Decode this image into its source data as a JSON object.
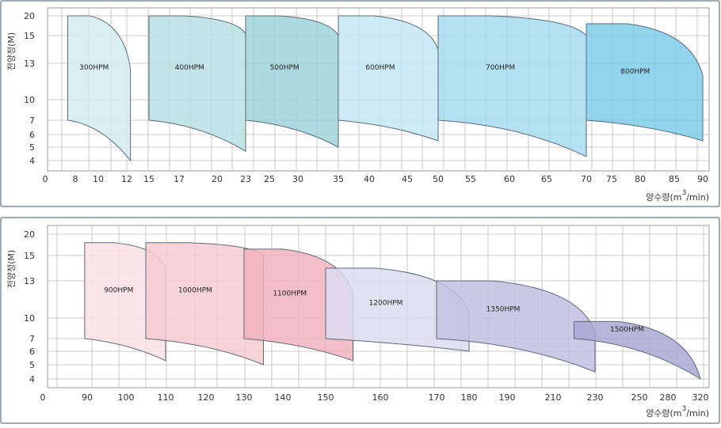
{
  "chart_data": [
    {
      "type": "area",
      "title": "",
      "ylabel": "전양정(M)",
      "xlabel": "양수량(m",
      "xlabel_sup": "3",
      "xlabel_tail": "/min)",
      "y_ticks": [
        "20",
        "15",
        "13",
        "10",
        "7",
        "6",
        "5",
        "4"
      ],
      "x_ticks": [
        "0",
        "8",
        "10",
        "12",
        "15",
        "17",
        "20",
        "23",
        "25",
        "30",
        "35",
        "40",
        "45",
        "50",
        "55",
        "60",
        "65",
        "70",
        "75",
        "80",
        "85",
        "90"
      ],
      "grid": true,
      "series": [
        {
          "name": "300HPM",
          "color": "#d3ecee",
          "flow_range": [
            6,
            12.5
          ],
          "max_head": 20,
          "min_head": 4,
          "head_at_max_flow_top": 12.5,
          "head_at_max_flow_bottom": 4.3
        },
        {
          "name": "400HPM",
          "color": "#b9e1e4",
          "flow_range": [
            15,
            23
          ],
          "max_head": 20,
          "min_head": 4.7,
          "head_at_max_flow_top": 15.5,
          "head_at_max_flow_bottom": 4.7
        },
        {
          "name": "500HPM",
          "color": "#9fd3d8",
          "flow_range": [
            23,
            35
          ],
          "max_head": 20,
          "min_head": 5,
          "head_at_max_flow_top": 15,
          "head_at_max_flow_bottom": 5
        },
        {
          "name": "600HPM",
          "color": "#c4e8f3",
          "flow_range": [
            35,
            50
          ],
          "max_head": 20,
          "min_head": 5.5,
          "head_at_max_flow_top": 14,
          "head_at_max_flow_bottom": 5.5
        },
        {
          "name": "700HPM",
          "color": "#a6dcef",
          "flow_range": [
            50,
            70
          ],
          "max_head": 20,
          "min_head": 4.3,
          "head_at_max_flow_top": 15,
          "head_at_max_flow_bottom": 4.3
        },
        {
          "name": "800HPM",
          "color": "#7fcce9",
          "flow_range": [
            70,
            90
          ],
          "max_head": 18,
          "min_head": 5.5,
          "head_at_max_flow_top": 12,
          "head_at_max_flow_bottom": 5.5
        }
      ]
    },
    {
      "type": "area",
      "title": "",
      "ylabel": "전양정(M)",
      "xlabel": "양수량(m",
      "xlabel_sup": "3",
      "xlabel_tail": "/min)",
      "y_ticks": [
        "20",
        "15",
        "13",
        "10",
        "7",
        "6",
        "5",
        "4"
      ],
      "x_ticks": [
        "0",
        "90",
        "100",
        "110",
        "120",
        "130",
        "140",
        "150",
        "160",
        "170",
        "180",
        "190",
        "210",
        "230",
        "250",
        "280",
        "320"
      ],
      "grid": true,
      "series": [
        {
          "name": "900HPM",
          "color": "#fbe1e4",
          "flow_range": [
            85,
            110
          ],
          "max_head": 18,
          "min_head": 5.3,
          "head_at_max_flow_top": 14,
          "head_at_max_flow_bottom": 5.3
        },
        {
          "name": "1000HPM",
          "color": "#f7cbd1",
          "flow_range": [
            105,
            135
          ],
          "max_head": 18,
          "min_head": 5,
          "head_at_max_flow_top": 15,
          "head_at_max_flow_bottom": 5
        },
        {
          "name": "1100HPM",
          "color": "#f1b3bd",
          "flow_range": [
            130,
            155
          ],
          "max_head": 16.5,
          "min_head": 5.3,
          "head_at_max_flow_top": 12,
          "head_at_max_flow_bottom": 5.3
        },
        {
          "name": "1200HPM",
          "color": "#dcdcef",
          "flow_range": [
            150,
            180
          ],
          "max_head": 14,
          "min_head": 6,
          "head_at_max_flow_top": 10.5,
          "head_at_max_flow_bottom": 6
        },
        {
          "name": "1350HPM",
          "color": "#c2c1e2",
          "flow_range": [
            170,
            230
          ],
          "max_head": 13,
          "min_head": 4.5,
          "head_at_max_flow_top": 8,
          "head_at_max_flow_bottom": 4.5
        },
        {
          "name": "1500HPM",
          "color": "#a9a8d4",
          "flow_range": [
            220,
            320
          ],
          "max_head": 9.5,
          "min_head": 4,
          "head_at_max_flow_top": 4,
          "head_at_max_flow_bottom": 4
        }
      ]
    }
  ]
}
